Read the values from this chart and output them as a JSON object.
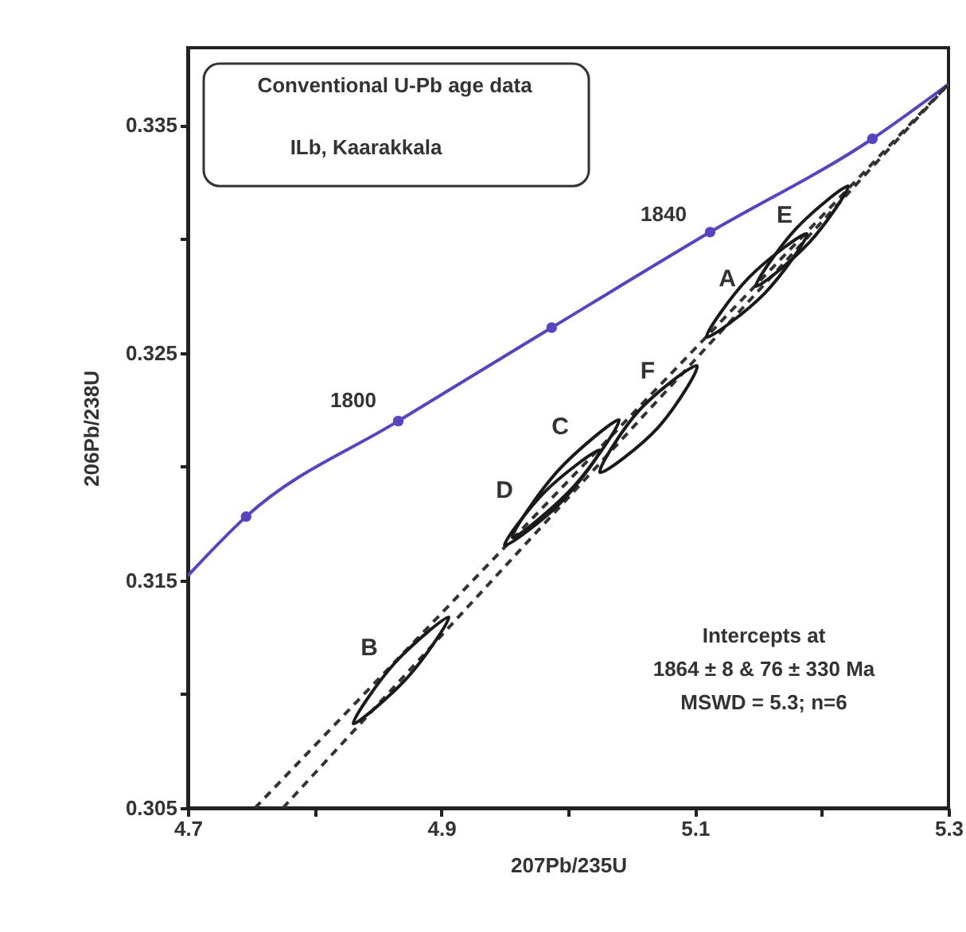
{
  "chart_data": {
    "type": "line",
    "xlabel": "207Pb/235U",
    "ylabel": "206Pb/238U",
    "xlim": [
      4.7,
      5.3
    ],
    "ylim": [
      0.305,
      0.3384
    ],
    "xticks": [
      4.7,
      {
        "value": 4.8,
        "label": null
      },
      4.9,
      {
        "value": 5.0,
        "label": null
      },
      5.1,
      {
        "value": 5.2,
        "label": null
      },
      5.3
    ],
    "yticks": [
      0.305,
      {
        "value": 0.31,
        "label": null
      },
      0.315,
      {
        "value": 0.32,
        "label": null
      },
      0.325,
      {
        "value": 0.33,
        "label": null
      },
      0.335
    ],
    "series": [
      {
        "type": "scatter",
        "color": "#5546c0",
        "marker": "circle",
        "x": [
          4.746,
          4.866,
          4.987,
          5.112,
          5.24
        ],
        "values": [
          0.3178,
          0.322,
          0.3261,
          0.3303,
          0.3344
        ]
      },
      {
        "color": "#5546c0",
        "marker": "none",
        "line_style": "solid",
        "x": [
          4.7,
          4.746,
          4.866,
          4.987,
          5.112,
          5.24,
          5.3
        ],
        "values": [
          0.3152,
          0.3178,
          0.322,
          0.3261,
          0.3303,
          0.3344,
          0.3368
        ]
      },
      {
        "color": "#333333",
        "marker": "none",
        "line_style": "dashed",
        "x": [
          4.753,
          5.3
        ],
        "values": [
          0.305,
          0.3368
        ]
      },
      {
        "color": "#333333",
        "marker": "none",
        "line_style": "dashed",
        "x": [
          4.775,
          5.3
        ],
        "values": [
          0.305,
          0.3368
        ]
      }
    ],
    "annotations": [
      "Conventional U-Pb age data",
      "ILb, Kaarakkala",
      "Intercepts at",
      "1864 ± 8  & 76 ± 330 Ma",
      "MSWD = 5.3; n=6",
      "1800",
      "1840",
      "A",
      "E",
      "F",
      "C",
      "D",
      "B"
    ]
  }
}
